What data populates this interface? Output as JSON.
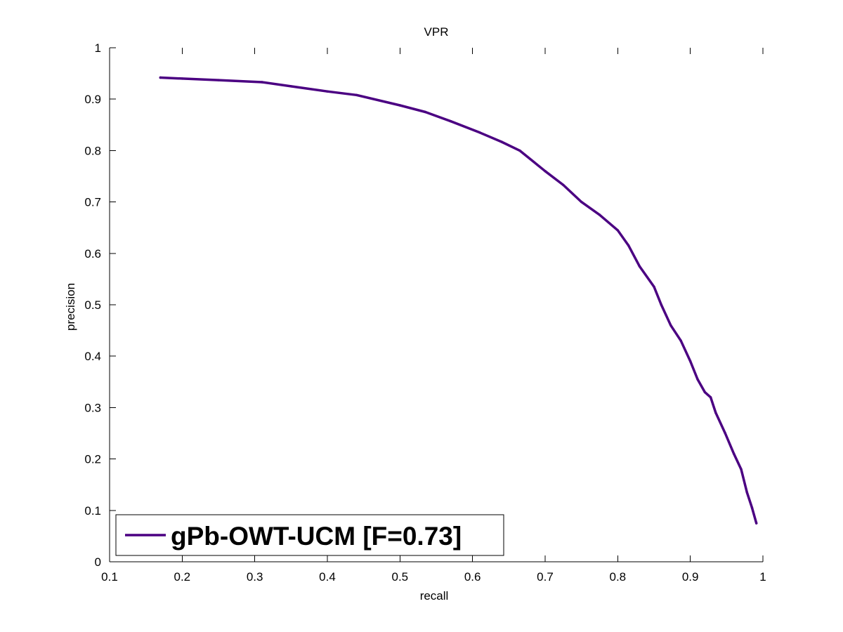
{
  "chart_data": {
    "type": "line",
    "title": "VPR",
    "xlabel": "recall",
    "ylabel": "precision",
    "xlim": [
      0.1,
      1
    ],
    "ylim": [
      0,
      1
    ],
    "xticks": [
      "0.1",
      "0.2",
      "0.3",
      "0.4",
      "0.5",
      "0.6",
      "0.7",
      "0.8",
      "0.9",
      "1"
    ],
    "yticks": [
      "0",
      "0.1",
      "0.2",
      "0.3",
      "0.4",
      "0.5",
      "0.6",
      "0.7",
      "0.8",
      "0.9",
      "1"
    ],
    "grid": false,
    "legend_position": "bottom-left",
    "series": [
      {
        "name": "gPb-OWT-UCM [F=0.73]",
        "color": "#4b0082",
        "x": [
          0.17,
          0.2,
          0.25,
          0.31,
          0.35,
          0.4,
          0.44,
          0.5,
          0.535,
          0.57,
          0.61,
          0.64,
          0.665,
          0.7,
          0.725,
          0.75,
          0.775,
          0.8,
          0.815,
          0.83,
          0.85,
          0.86,
          0.873,
          0.887,
          0.9,
          0.91,
          0.92,
          0.928,
          0.935,
          0.948,
          0.96,
          0.97,
          0.978,
          0.985,
          0.991
        ],
        "y": [
          0.942,
          0.94,
          0.937,
          0.933,
          0.925,
          0.915,
          0.908,
          0.888,
          0.875,
          0.857,
          0.835,
          0.817,
          0.8,
          0.76,
          0.733,
          0.7,
          0.675,
          0.645,
          0.615,
          0.575,
          0.535,
          0.5,
          0.46,
          0.43,
          0.39,
          0.355,
          0.33,
          0.32,
          0.29,
          0.25,
          0.21,
          0.18,
          0.135,
          0.105,
          0.075
        ]
      }
    ]
  }
}
